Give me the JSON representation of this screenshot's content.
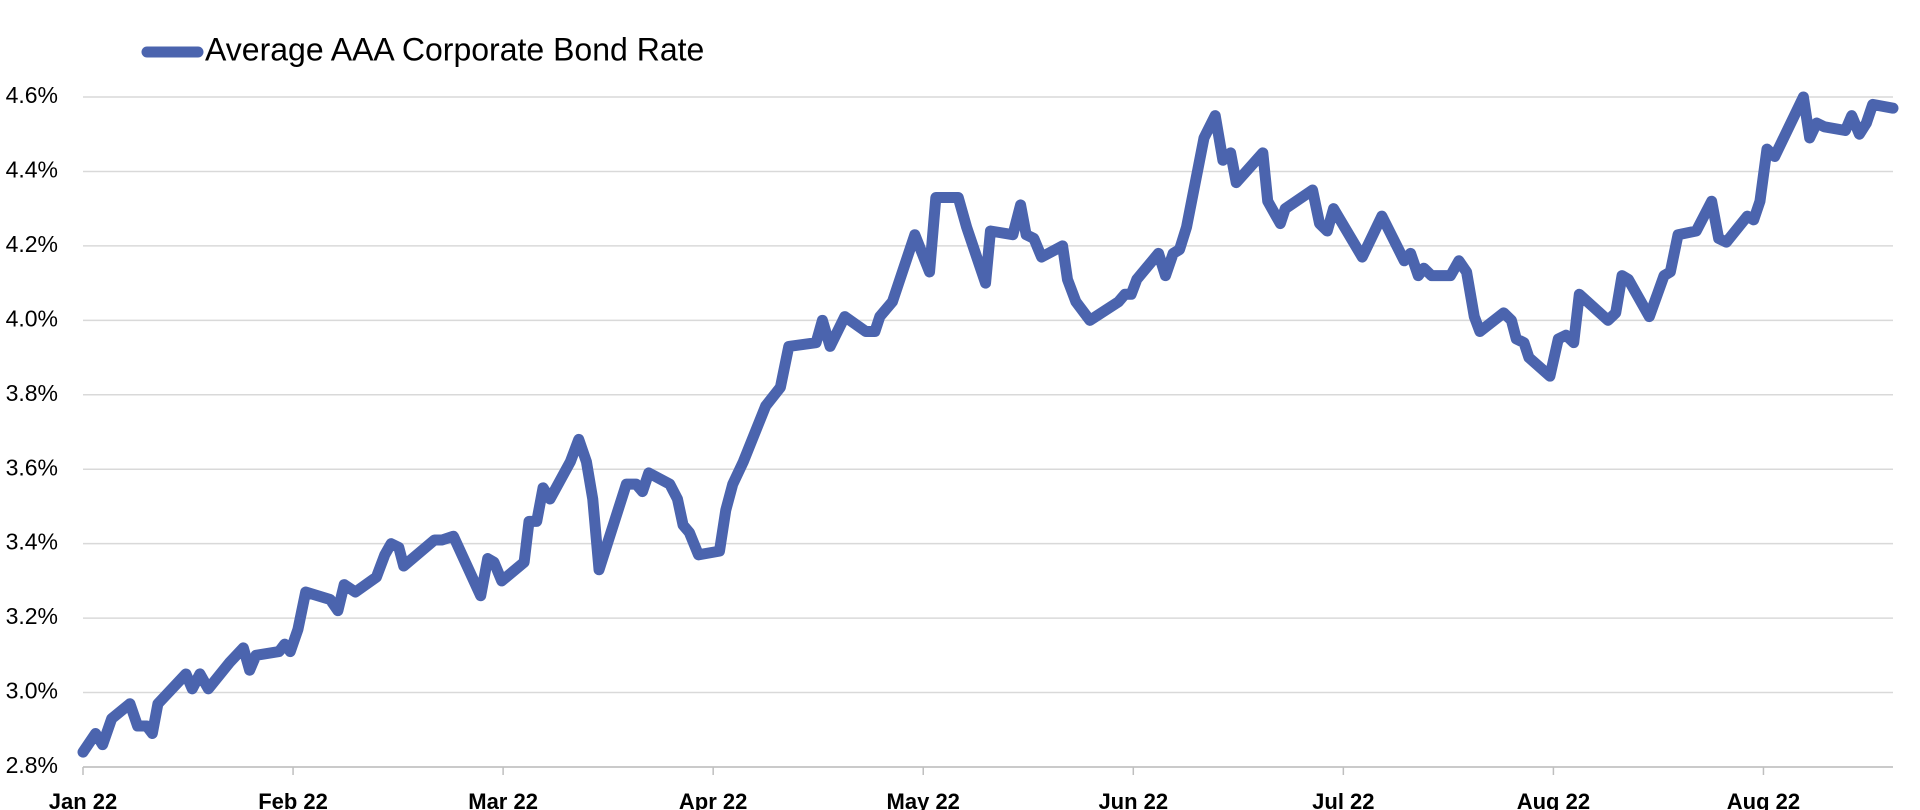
{
  "chart_data": {
    "type": "line",
    "xlim": [
      0,
      258.5
    ],
    "xticks": [
      {
        "value": 0,
        "label": "Jan 22"
      },
      {
        "value": 30,
        "label": "Feb 22"
      },
      {
        "value": 60,
        "label": "Mar 22"
      },
      {
        "value": 90,
        "label": "Apr 22"
      },
      {
        "value": 120,
        "label": "May 22"
      },
      {
        "value": 150,
        "label": "Jun 22"
      },
      {
        "value": 180,
        "label": "Jul 22"
      },
      {
        "value": 210,
        "label": "Aug 22"
      },
      {
        "value": 240,
        "label": "Aug 22"
      }
    ],
    "ylim": [
      2.8,
      4.6
    ],
    "yticks": [
      {
        "value": 2.8,
        "label": "2.8%"
      },
      {
        "value": 3.0,
        "label": "3.0%"
      },
      {
        "value": 3.2,
        "label": "3.2%"
      },
      {
        "value": 3.4,
        "label": "3.4%"
      },
      {
        "value": 3.6,
        "label": "3.6%"
      },
      {
        "value": 3.8,
        "label": "3.8%"
      },
      {
        "value": 4.0,
        "label": "4.0%"
      },
      {
        "value": 4.2,
        "label": "4.2%"
      },
      {
        "value": 4.4,
        "label": "4.4%"
      },
      {
        "value": 4.6,
        "label": "4.6%"
      }
    ],
    "grid": true,
    "legend": "top-left",
    "series": [
      {
        "name": "Average AAA Corporate Bond Rate",
        "color": "#4b64ae",
        "x": [
          0,
          1.8,
          2.8,
          4.1,
          6.7,
          7.8,
          9.1,
          9.9,
          10.7,
          14.7,
          15.6,
          16.7,
          17.9,
          20.9,
          22.9,
          23.8,
          24.7,
          28.0,
          28.8,
          29.6,
          30.7,
          31.8,
          35.3,
          36.4,
          37.3,
          38.9,
          41.9,
          43.1,
          44.0,
          45.1,
          45.8,
          50.2,
          51.3,
          52.9,
          56.8,
          57.8,
          58.7,
          59.8,
          63.0,
          63.7,
          64.8,
          65.7,
          66.7,
          69.6,
          70.8,
          71.9,
          72.8,
          73.7,
          77.6,
          79.0,
          79.9,
          80.8,
          83.8,
          84.9,
          85.7,
          86.6,
          87.9,
          90.9,
          91.8,
          92.8,
          94.3,
          97.5,
          99.6,
          100.8,
          104.7,
          105.6,
          106.7,
          108.8,
          111.8,
          113.1,
          113.8,
          115.6,
          118.8,
          120.9,
          121.8,
          125.0,
          126.2,
          128.9,
          129.6,
          132.8,
          133.9,
          134.7,
          135.8,
          136.9,
          139.9,
          140.6,
          141.8,
          143.8,
          147.9,
          148.8,
          149.7,
          150.5,
          153.6,
          154.6,
          155.7,
          156.6,
          157.6,
          160.1,
          161.7,
          162.8,
          163.9,
          164.7,
          168.5,
          169.2,
          171.0,
          171.7,
          175.6,
          176.6,
          177.7,
          178.6,
          182.7,
          185.5,
          188.7,
          189.6,
          190.7,
          191.5,
          192.6,
          195.3,
          196.5,
          197.6,
          198.7,
          199.5,
          202.9,
          204.0,
          204.7,
          205.8,
          206.5,
          209.5,
          210.7,
          211.8,
          212.9,
          213.7,
          217.8,
          218.9,
          219.8,
          220.7,
          223.7,
          225.8,
          226.7,
          227.8,
          230.4,
          232.6,
          233.6,
          234.7,
          237.7,
          238.6,
          239.5,
          240.5,
          241.6,
          245.7,
          246.6,
          247.6,
          248.7,
          251.7,
          252.6,
          253.7,
          254.7,
          255.6,
          258.5
        ],
        "values": [
          2.84,
          2.89,
          2.86,
          2.93,
          2.97,
          2.91,
          2.91,
          2.89,
          2.97,
          3.05,
          3.01,
          3.05,
          3.01,
          3.08,
          3.12,
          3.06,
          3.1,
          3.11,
          3.13,
          3.11,
          3.17,
          3.27,
          3.25,
          3.22,
          3.29,
          3.27,
          3.31,
          3.37,
          3.4,
          3.39,
          3.34,
          3.41,
          3.41,
          3.42,
          3.26,
          3.36,
          3.35,
          3.3,
          3.35,
          3.46,
          3.46,
          3.55,
          3.52,
          3.62,
          3.68,
          3.62,
          3.52,
          3.33,
          3.56,
          3.56,
          3.54,
          3.59,
          3.56,
          3.52,
          3.45,
          3.43,
          3.37,
          3.38,
          3.49,
          3.56,
          3.62,
          3.77,
          3.82,
          3.93,
          3.94,
          4.0,
          3.93,
          4.01,
          3.97,
          3.97,
          4.01,
          4.05,
          4.23,
          4.13,
          4.33,
          4.33,
          4.25,
          4.1,
          4.24,
          4.23,
          4.31,
          4.23,
          4.22,
          4.17,
          4.2,
          4.11,
          4.05,
          4.0,
          4.05,
          4.07,
          4.07,
          4.11,
          4.18,
          4.12,
          4.18,
          4.19,
          4.25,
          4.49,
          4.55,
          4.43,
          4.45,
          4.37,
          4.45,
          4.32,
          4.26,
          4.3,
          4.35,
          4.26,
          4.24,
          4.3,
          4.17,
          4.28,
          4.16,
          4.18,
          4.12,
          4.14,
          4.12,
          4.12,
          4.16,
          4.13,
          4.01,
          3.97,
          4.02,
          4.0,
          3.95,
          3.94,
          3.9,
          3.85,
          3.95,
          3.96,
          3.94,
          4.07,
          4.0,
          4.02,
          4.12,
          4.11,
          4.01,
          4.12,
          4.13,
          4.23,
          4.24,
          4.32,
          4.22,
          4.21,
          4.28,
          4.27,
          4.32,
          4.46,
          4.44,
          4.6,
          4.49,
          4.53,
          4.52,
          4.51,
          4.55,
          4.5,
          4.53,
          4.58,
          4.57
        ]
      }
    ]
  }
}
